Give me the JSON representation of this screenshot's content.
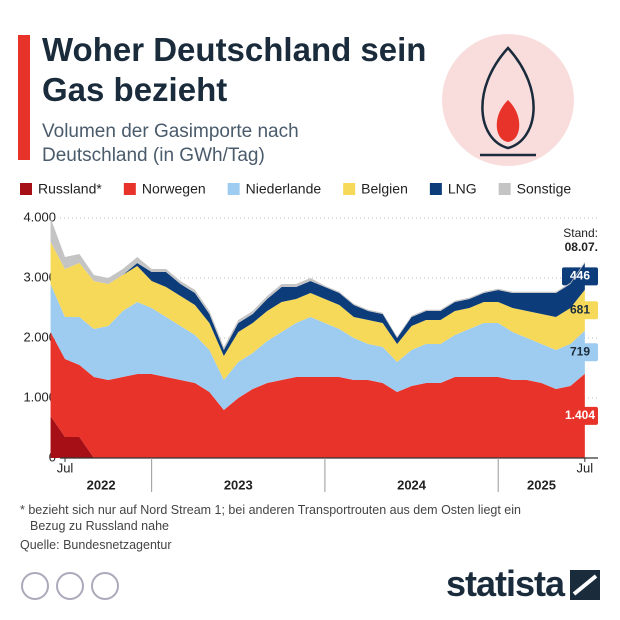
{
  "chart_data": {
    "type": "stacked_area",
    "title": "Woher Deutschland sein Gas bezieht",
    "subtitle": "Volumen der Gasimporte nach Deutschland (in GWh/Tag)",
    "x": [
      "2022-06",
      "2022-07",
      "2022-08",
      "2022-09",
      "2022-10",
      "2022-11",
      "2022-12",
      "2023-01",
      "2023-02",
      "2023-03",
      "2023-04",
      "2023-05",
      "2023-06",
      "2023-07",
      "2023-08",
      "2023-09",
      "2023-10",
      "2023-11",
      "2023-12",
      "2024-01",
      "2024-02",
      "2024-03",
      "2024-04",
      "2024-05",
      "2024-06",
      "2024-07",
      "2024-08",
      "2024-09",
      "2024-10",
      "2024-11",
      "2024-12",
      "2025-01",
      "2025-02",
      "2025-03",
      "2025-04",
      "2025-05",
      "2025-06",
      "2025-07"
    ],
    "series": [
      {
        "name": "Russland*",
        "color": "#a50f15",
        "values": [
          700,
          350,
          350,
          0,
          0,
          0,
          0,
          0,
          0,
          0,
          0,
          0,
          0,
          0,
          0,
          0,
          0,
          0,
          0,
          0,
          0,
          0,
          0,
          0,
          0,
          0,
          0,
          0,
          0,
          0,
          0,
          0,
          0,
          0,
          0,
          0,
          0,
          0
        ]
      },
      {
        "name": "Norwegen",
        "color": "#e8332a",
        "values": [
          1400,
          1300,
          1200,
          1350,
          1300,
          1350,
          1400,
          1400,
          1350,
          1300,
          1250,
          1100,
          800,
          1000,
          1150,
          1250,
          1300,
          1350,
          1350,
          1350,
          1350,
          1300,
          1300,
          1250,
          1100,
          1200,
          1250,
          1250,
          1350,
          1350,
          1350,
          1350,
          1300,
          1300,
          1250,
          1150,
          1200,
          1404
        ],
        "value_labels": [
          null,
          null,
          null,
          null,
          null,
          null,
          null,
          null,
          null,
          null,
          null,
          null,
          null,
          null,
          null,
          null,
          null,
          null,
          null,
          null,
          null,
          null,
          null,
          null,
          null,
          null,
          null,
          null,
          null,
          null,
          null,
          null,
          null,
          null,
          null,
          null,
          null,
          "1.404"
        ]
      },
      {
        "name": "Niederlande",
        "color": "#9ecbf0",
        "values": [
          800,
          700,
          800,
          800,
          900,
          1100,
          1200,
          1100,
          1000,
          900,
          800,
          700,
          500,
          600,
          600,
          700,
          800,
          900,
          1000,
          900,
          800,
          700,
          600,
          600,
          500,
          600,
          650,
          650,
          700,
          800,
          900,
          900,
          800,
          700,
          650,
          650,
          700,
          719
        ]
      },
      {
        "name": "Belgien",
        "color": "#f7d95a",
        "values": [
          700,
          800,
          900,
          800,
          700,
          600,
          600,
          450,
          500,
          500,
          500,
          450,
          400,
          500,
          500,
          500,
          500,
          400,
          400,
          400,
          400,
          350,
          400,
          400,
          300,
          400,
          400,
          400,
          400,
          350,
          350,
          350,
          400,
          450,
          500,
          550,
          600,
          681
        ]
      },
      {
        "name": "LNG",
        "color": "#0d3c7a",
        "values": [
          0,
          0,
          0,
          0,
          0,
          0,
          50,
          150,
          250,
          200,
          200,
          150,
          100,
          150,
          150,
          200,
          250,
          200,
          200,
          200,
          200,
          200,
          150,
          150,
          100,
          150,
          150,
          150,
          150,
          150,
          150,
          200,
          250,
          300,
          350,
          400,
          400,
          446
        ]
      },
      {
        "name": "Sonstige",
        "color": "#c4c4c4",
        "values": [
          400,
          200,
          150,
          100,
          100,
          100,
          100,
          50,
          50,
          50,
          50,
          50,
          50,
          50,
          50,
          50,
          50,
          50,
          50,
          20,
          20,
          20,
          20,
          20,
          20,
          20,
          20,
          20,
          20,
          20,
          20,
          20,
          20,
          20,
          20,
          20,
          20,
          20
        ]
      }
    ],
    "ylim": [
      0,
      4000
    ],
    "yticks": [
      0,
      {
        "value": 1000,
        "label": "1.000"
      },
      {
        "value": 2000,
        "label": "2.000"
      },
      {
        "value": 3000,
        "label": "3.000"
      },
      {
        "value": 4000,
        "label": "4.000"
      }
    ],
    "xticks": [
      {
        "value": "2022-07",
        "label": "Jul"
      },
      {
        "value": "2025-07",
        "label": "Jul"
      }
    ],
    "year_labels": [
      "2022",
      "2023",
      "2024",
      "2025"
    ],
    "annotations": [
      "Stand:",
      "08.07."
    ],
    "grid": true,
    "footnote": "* bezieht sich nur auf Nord Stream 1; bei anderen Transportrouten aus dem Osten liegt ein Bezug zu Russland nahe",
    "source": "Quelle: Bundesnetzagentur",
    "brand": "statista"
  }
}
